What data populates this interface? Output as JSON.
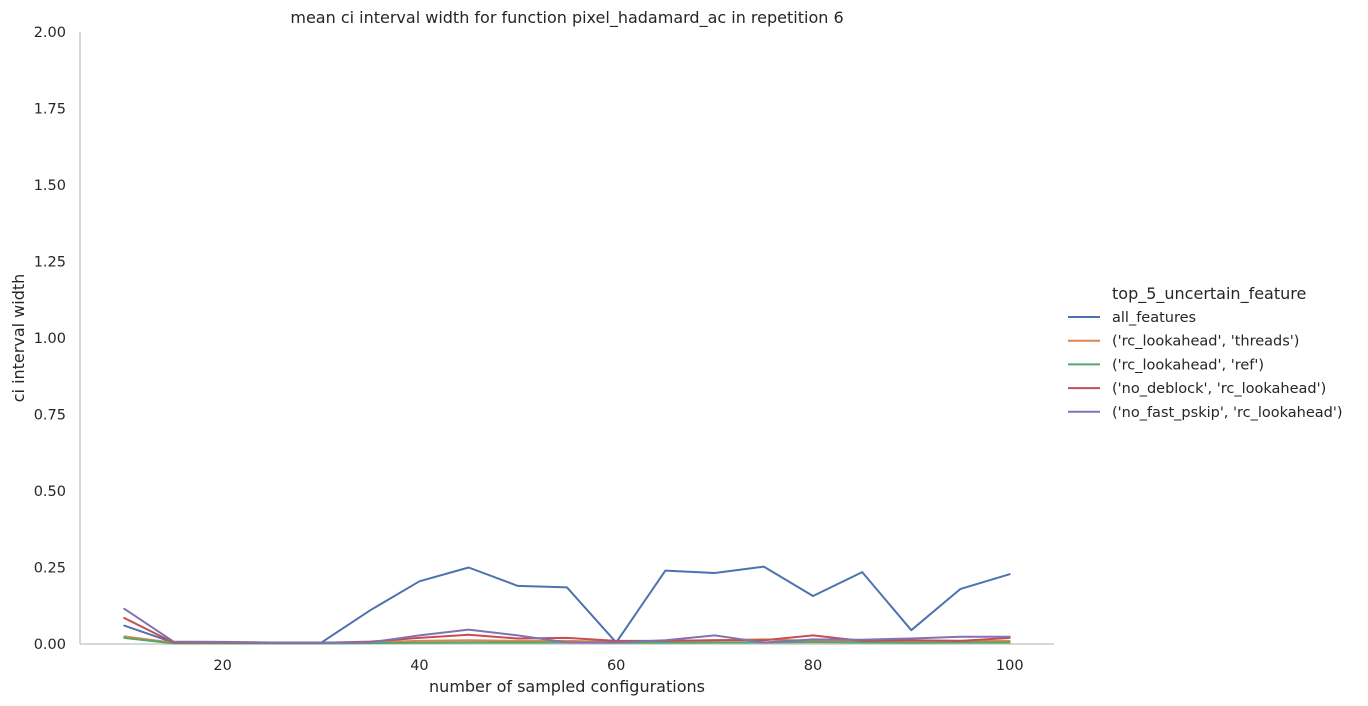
{
  "chart_data": {
    "type": "line",
    "title": "mean ci interval width for function pixel_hadamard_ac in repetition 6",
    "xlabel": "number of sampled configurations",
    "ylabel": "ci interval width",
    "xlim": [
      5.5,
      104.5
    ],
    "ylim": [
      0,
      2.0
    ],
    "xticks": [
      20,
      40,
      60,
      80,
      100
    ],
    "xtick_labels": [
      "20",
      "40",
      "60",
      "80",
      "100"
    ],
    "yticks": [
      0,
      0.25,
      0.5,
      0.75,
      1.0,
      1.25,
      1.5,
      1.75,
      2.0
    ],
    "ytick_labels": [
      "0.00",
      "0.25",
      "0.50",
      "0.75",
      "1.00",
      "1.25",
      "1.50",
      "1.75",
      "2.00"
    ],
    "grid": false,
    "legend": {
      "title": "top_5_uncertain_feature",
      "placement": "outside-right"
    },
    "x": [
      10,
      15,
      20,
      25,
      30,
      35,
      40,
      45,
      50,
      55,
      60,
      65,
      70,
      75,
      80,
      85,
      90,
      95,
      100
    ],
    "series": [
      {
        "name": "all_features",
        "color": "#4c72b0",
        "values": [
          0.06,
          0.005,
          0.005,
          0.004,
          0.004,
          0.11,
          0.205,
          0.25,
          0.19,
          0.185,
          0.005,
          0.24,
          0.232,
          0.253,
          0.157,
          0.235,
          0.045,
          0.18,
          0.228
        ]
      },
      {
        "name": "('rc_lookahead', 'threads')",
        "color": "#dd8452",
        "values": [
          0.025,
          0.004,
          0.004,
          0.003,
          0.003,
          0.006,
          0.01,
          0.012,
          0.01,
          0.01,
          0.007,
          0.01,
          0.012,
          0.015,
          0.01,
          0.01,
          0.01,
          0.01,
          0.01
        ]
      },
      {
        "name": "('rc_lookahead', 'ref')",
        "color": "#55a868",
        "values": [
          0.02,
          0.002,
          0.002,
          0.002,
          0.002,
          0.003,
          0.004,
          0.005,
          0.005,
          0.005,
          0.004,
          0.004,
          0.005,
          0.005,
          0.006,
          0.005,
          0.004,
          0.005,
          0.005
        ]
      },
      {
        "name": "('no_deblock', 'rc_lookahead')",
        "color": "#c44e52",
        "values": [
          0.085,
          0.005,
          0.005,
          0.004,
          0.004,
          0.008,
          0.02,
          0.03,
          0.018,
          0.02,
          0.01,
          0.01,
          0.012,
          0.012,
          0.028,
          0.01,
          0.012,
          0.01,
          0.02
        ]
      },
      {
        "name": "('no_fast_pskip', 'rc_lookahead')",
        "color": "#8172b3",
        "values": [
          0.115,
          0.008,
          0.007,
          0.005,
          0.005,
          0.005,
          0.028,
          0.047,
          0.028,
          0.005,
          0.005,
          0.012,
          0.028,
          0.005,
          0.015,
          0.014,
          0.018,
          0.024,
          0.024
        ]
      }
    ]
  }
}
